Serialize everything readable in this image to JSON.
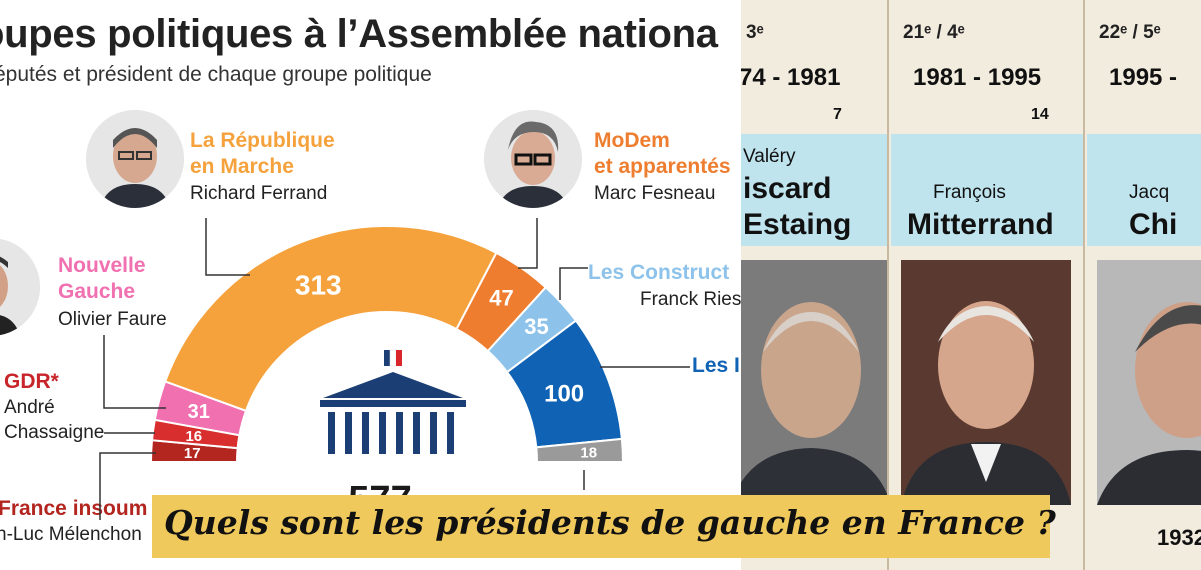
{
  "infographic": {
    "title": "oupes politiques à l’Assemblée nationa",
    "subtitle": "éputés et président de chaque groupe politique",
    "groups": [
      {
        "name": "La République\nen Marche",
        "president": "Richard Ferrand",
        "seats": 313,
        "color": "#f5a23d"
      },
      {
        "name": "MoDem\net apparentés",
        "president": "Marc Fesneau",
        "seats": 47,
        "color": "#ee7d2f"
      },
      {
        "name": "Les Construct",
        "president": "Franck Ries",
        "seats": 35,
        "color": "#8dc3ea"
      },
      {
        "name": "Les I",
        "president": "",
        "seats": 100,
        "color": "#0f62b4"
      },
      {
        "name": "",
        "president": "",
        "seats": 18,
        "color": "#9a9a9a"
      },
      {
        "name": "Nouvelle\nGauche",
        "president": "Olivier Faure",
        "seats": 31,
        "color": "#f070b0"
      },
      {
        "name": "GDR*",
        "president": "André\nChassaigne",
        "seats": 16,
        "color": "#d92e2e"
      },
      {
        "name": "France insoum",
        "president": "n-Luc Mélenchon",
        "seats": 17,
        "color": "#b3251f"
      }
    ],
    "total": "577"
  },
  "table": {
    "columns": [
      {
        "term": "3ᵉ",
        "years": "74 - 1981",
        "count": "7",
        "first": "Valéry",
        "last1": "iscard",
        "last2": "Estaing"
      },
      {
        "term": "21ᵉ / 4ᵉ",
        "years": "1981 - 1995",
        "count": "14",
        "first": "François",
        "last1": "Mitterrand",
        "last2": ""
      },
      {
        "term": "22ᵉ / 5ᵉ",
        "years": "1995 -",
        "count": "",
        "first": "Jacq",
        "last1": "Chi",
        "last2": ""
      }
    ],
    "birth_partial": "1932"
  },
  "banner": {
    "text": "Quels sont les présidents de gauche en France ?"
  }
}
